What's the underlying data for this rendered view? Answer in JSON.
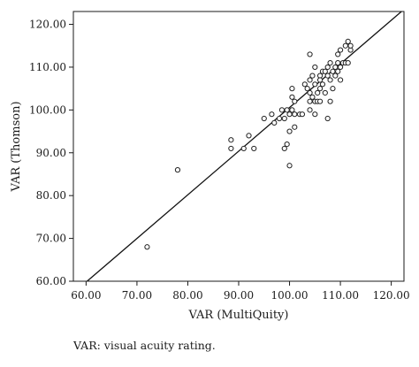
{
  "chart_data": {
    "type": "scatter",
    "title": "",
    "xlabel": "VAR (MultiQuity)",
    "ylabel": "VAR (Thomson)",
    "xlim": [
      57.5,
      122.5
    ],
    "ylim": [
      60,
      123
    ],
    "x_ticks": [
      "60.00",
      "70.00",
      "80.00",
      "90.00",
      "100.00",
      "110.00",
      "120.00"
    ],
    "y_ticks": [
      "60.00",
      "70.00",
      "80.00",
      "90.00",
      "100.00",
      "110.00",
      "120.00"
    ],
    "x_tick_values": [
      60,
      70,
      80,
      90,
      100,
      110,
      120
    ],
    "y_tick_values": [
      60,
      70,
      80,
      90,
      100,
      110,
      120
    ],
    "grid": false,
    "legend": "none",
    "marker_color": "#222222",
    "fit_line": {
      "points": [
        [
          60.2,
          60
        ],
        [
          122.5,
          123.5
        ]
      ],
      "color": "#111111"
    },
    "points": [
      [
        72,
        68
      ],
      [
        78,
        86
      ],
      [
        88.5,
        93
      ],
      [
        88.5,
        91
      ],
      [
        91,
        91
      ],
      [
        92,
        94
      ],
      [
        93,
        91
      ],
      [
        95,
        98
      ],
      [
        96.5,
        99
      ],
      [
        97,
        97
      ],
      [
        98,
        98
      ],
      [
        98.5,
        100
      ],
      [
        99,
        91
      ],
      [
        99,
        98
      ],
      [
        99.5,
        92
      ],
      [
        99.5,
        100
      ],
      [
        100,
        87
      ],
      [
        100,
        95
      ],
      [
        100,
        99
      ],
      [
        100.5,
        100
      ],
      [
        100.5,
        103
      ],
      [
        100.5,
        105
      ],
      [
        101,
        96
      ],
      [
        101,
        99
      ],
      [
        101,
        102
      ],
      [
        102,
        99
      ],
      [
        102.5,
        99
      ],
      [
        103,
        106
      ],
      [
        103.5,
        105
      ],
      [
        104,
        100
      ],
      [
        104,
        104
      ],
      [
        104,
        102
      ],
      [
        104,
        107
      ],
      [
        104,
        113
      ],
      [
        104.5,
        103
      ],
      [
        104.5,
        108
      ],
      [
        105,
        99
      ],
      [
        105,
        102
      ],
      [
        105,
        106
      ],
      [
        105,
        110
      ],
      [
        105.5,
        104
      ],
      [
        105.5,
        102
      ],
      [
        106,
        105
      ],
      [
        106,
        108
      ],
      [
        106,
        102
      ],
      [
        106,
        107
      ],
      [
        106.5,
        106
      ],
      [
        106.5,
        109
      ],
      [
        107,
        104
      ],
      [
        107,
        109
      ],
      [
        107.5,
        98
      ],
      [
        107.5,
        108
      ],
      [
        107.5,
        110
      ],
      [
        108,
        102
      ],
      [
        108,
        107
      ],
      [
        108,
        111
      ],
      [
        108.5,
        109
      ],
      [
        108.5,
        105
      ],
      [
        109,
        110
      ],
      [
        109,
        108
      ],
      [
        109.5,
        109
      ],
      [
        109.5,
        111
      ],
      [
        109.5,
        113
      ],
      [
        110,
        107
      ],
      [
        110,
        110
      ],
      [
        110,
        114
      ],
      [
        110.5,
        111
      ],
      [
        111,
        111
      ],
      [
        111,
        115
      ],
      [
        111.5,
        111
      ],
      [
        111.5,
        116
      ],
      [
        112,
        114
      ],
      [
        112,
        115
      ]
    ]
  },
  "caption": "VAR: visual acuity rating."
}
